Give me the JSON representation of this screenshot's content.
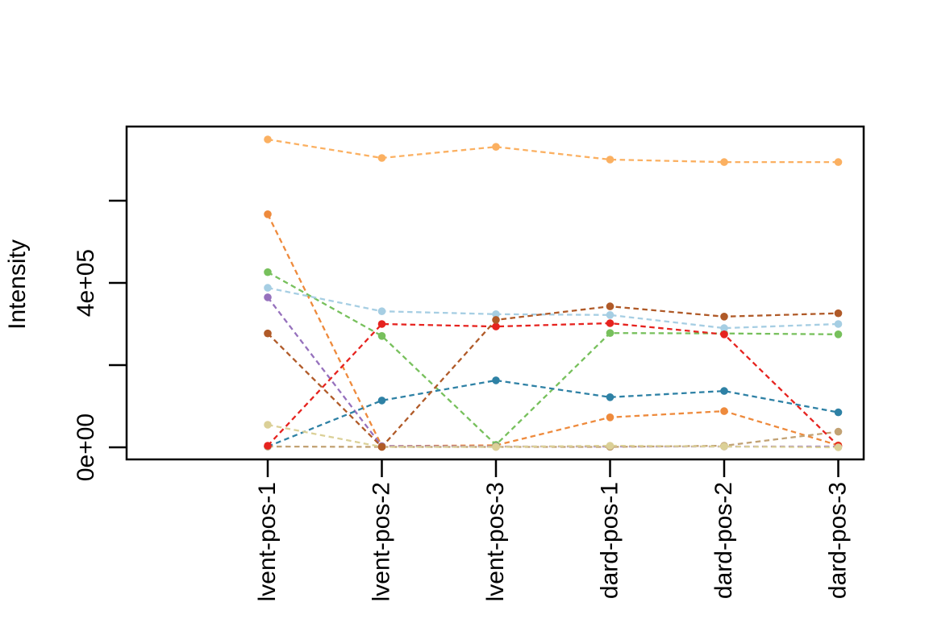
{
  "figure": {
    "background_color": "#ffffff",
    "border_color": "#000000"
  },
  "chart_data": {
    "type": "line",
    "title": "",
    "xlabel": "",
    "ylabel": "Intensity",
    "grid": false,
    "legend": "none",
    "line_style": "dashed",
    "marker": "filled-circle",
    "ylim": [
      0,
      780000
    ],
    "yticks": [
      {
        "value": 0,
        "label": "0e+00"
      },
      {
        "value": 200000,
        "label": ""
      },
      {
        "value": 400000,
        "label": "4e+05"
      },
      {
        "value": 600000,
        "label": ""
      }
    ],
    "categories": [
      "lvent-pos-1",
      "lvent-pos-2",
      "lvent-pos-3",
      "dard-pos-1",
      "dard-pos-2",
      "dard-pos-3"
    ],
    "series": [
      {
        "name": "sandy-orange",
        "color": "#FBB061",
        "values": [
          749000,
          704000,
          731000,
          700000,
          694000,
          694000
        ]
      },
      {
        "name": "orange",
        "color": "#EE8A3C",
        "values": [
          567000,
          3000,
          5000,
          73000,
          88000,
          5000
        ]
      },
      {
        "name": "green",
        "color": "#77C05C",
        "values": [
          426000,
          271000,
          6000,
          278000,
          277000,
          275000
        ]
      },
      {
        "name": "purple",
        "color": "#9671BD",
        "values": [
          365000,
          3000,
          2000,
          2000,
          2000,
          2000
        ]
      },
      {
        "name": "light-blue",
        "color": "#A6CEE3",
        "values": [
          388000,
          331000,
          324000,
          322000,
          290000,
          300000
        ]
      },
      {
        "name": "teal",
        "color": "#2E81A5",
        "values": [
          2000,
          114000,
          163000,
          122000,
          137000,
          85000
        ]
      },
      {
        "name": "tan",
        "color": "#C2A274",
        "values": [
          2000,
          1000,
          1000,
          1000,
          4000,
          38000
        ]
      },
      {
        "name": "red",
        "color": "#E6231F",
        "values": [
          4000,
          300000,
          294000,
          302000,
          275000,
          4000
        ]
      },
      {
        "name": "khaki",
        "color": "#DBD097",
        "values": [
          55000,
          1000,
          1000,
          4000,
          2000,
          0
        ]
      },
      {
        "name": "brown",
        "color": "#B05A28",
        "values": [
          277000,
          1000,
          310000,
          343000,
          318000,
          326000
        ]
      }
    ]
  }
}
